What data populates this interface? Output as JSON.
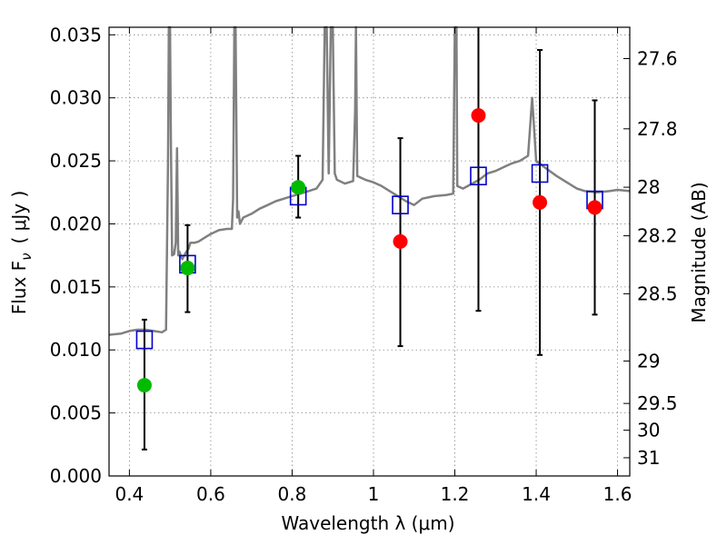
{
  "chart_data": {
    "type": "scatter",
    "title": "",
    "xlabel": "Wavelength  λ (μm)",
    "ylabel": "Flux  F",
    "ylabel_sub": "ν",
    "ylabel_unit": "( μJy )",
    "y2label": "Magnitude (AB)",
    "xlim": [
      0.35,
      1.63
    ],
    "ylim": [
      0.0,
      0.0356
    ],
    "grid": true,
    "x_ticks": [
      {
        "value": 0.4,
        "label": "0.4"
      },
      {
        "value": 0.6,
        "label": "0.6"
      },
      {
        "value": 0.8,
        "label": "0.8"
      },
      {
        "value": 1.0,
        "label": "1"
      },
      {
        "value": 1.2,
        "label": "1.2"
      },
      {
        "value": 1.4,
        "label": "1.4"
      },
      {
        "value": 1.6,
        "label": "1.6"
      }
    ],
    "y_ticks": [
      {
        "value": 0.0,
        "label": "0.000"
      },
      {
        "value": 0.005,
        "label": "0.005"
      },
      {
        "value": 0.01,
        "label": "0.010"
      },
      {
        "value": 0.015,
        "label": "0.015"
      },
      {
        "value": 0.02,
        "label": "0.020"
      },
      {
        "value": 0.025,
        "label": "0.025"
      },
      {
        "value": 0.03,
        "label": "0.030"
      },
      {
        "value": 0.035,
        "label": "0.035"
      }
    ],
    "y2_ticks": [
      {
        "mag": 27.6,
        "label": "27.6"
      },
      {
        "mag": 27.8,
        "label": "27.8"
      },
      {
        "mag": 28.0,
        "label": "28"
      },
      {
        "mag": 28.2,
        "label": "28.2"
      },
      {
        "mag": 28.5,
        "label": "28.5"
      },
      {
        "mag": 29.0,
        "label": "29"
      },
      {
        "mag": 29.5,
        "label": "29.5"
      },
      {
        "mag": 30.0,
        "label": "30"
      },
      {
        "mag": 31.0,
        "label": "31"
      }
    ],
    "colors": {
      "model": "#808080",
      "model_points": "#0000cc",
      "observed_optical": "#00bb00",
      "observed_nir": "#ff0000",
      "errorbar": "#000000",
      "grid": "#888888"
    },
    "model_spectrum": {
      "x": [
        0.35,
        0.38,
        0.4,
        0.42,
        0.44,
        0.46,
        0.48,
        0.49,
        0.495,
        0.497,
        0.5,
        0.502,
        0.505,
        0.51,
        0.514,
        0.517,
        0.52,
        0.523,
        0.526,
        0.53,
        0.535,
        0.54,
        0.545,
        0.55,
        0.56,
        0.57,
        0.58,
        0.59,
        0.6,
        0.62,
        0.64,
        0.652,
        0.655,
        0.658,
        0.661,
        0.665,
        0.668,
        0.672,
        0.675,
        0.68,
        0.7,
        0.72,
        0.74,
        0.76,
        0.78,
        0.8,
        0.82,
        0.84,
        0.86,
        0.875,
        0.88,
        0.885,
        0.89,
        0.895,
        0.9,
        0.905,
        0.91,
        0.93,
        0.95,
        0.955,
        0.957,
        0.96,
        0.98,
        1.0,
        1.02,
        1.04,
        1.06,
        1.08,
        1.1,
        1.12,
        1.15,
        1.18,
        1.196,
        1.2,
        1.204,
        1.206,
        1.22,
        1.26,
        1.28,
        1.3,
        1.32,
        1.34,
        1.36,
        1.38,
        1.39,
        1.4,
        1.42,
        1.45,
        1.48,
        1.5,
        1.52,
        1.55,
        1.58,
        1.6,
        1.63
      ],
      "y": [
        0.0112,
        0.0113,
        0.0115,
        0.0116,
        0.0116,
        0.0115,
        0.0114,
        0.0116,
        0.025,
        0.0356,
        0.0356,
        0.027,
        0.0175,
        0.0176,
        0.0185,
        0.026,
        0.0175,
        0.0178,
        0.0175,
        0.0172,
        0.0175,
        0.0178,
        0.018,
        0.0185,
        0.0185,
        0.0186,
        0.0188,
        0.019,
        0.0192,
        0.0195,
        0.0196,
        0.0196,
        0.022,
        0.0356,
        0.0356,
        0.0205,
        0.021,
        0.02,
        0.0202,
        0.0205,
        0.0208,
        0.0212,
        0.0215,
        0.0218,
        0.022,
        0.0222,
        0.0224,
        0.0226,
        0.0228,
        0.0235,
        0.0356,
        0.0356,
        0.024,
        0.0356,
        0.0356,
        0.024,
        0.0235,
        0.0232,
        0.0234,
        0.029,
        0.0356,
        0.0238,
        0.0235,
        0.0233,
        0.023,
        0.0226,
        0.0222,
        0.0218,
        0.0215,
        0.022,
        0.0222,
        0.0223,
        0.0224,
        0.0356,
        0.0356,
        0.023,
        0.0228,
        0.0235,
        0.024,
        0.0242,
        0.0245,
        0.0248,
        0.025,
        0.0254,
        0.03,
        0.025,
        0.0245,
        0.0238,
        0.0232,
        0.0228,
        0.0226,
        0.0225,
        0.0226,
        0.0227,
        0.0226
      ]
    },
    "model_points": {
      "x": [
        0.437,
        0.543,
        0.815,
        1.066,
        1.258,
        1.409,
        1.544
      ],
      "y": [
        0.0108,
        0.0168,
        0.0222,
        0.0215,
        0.0238,
        0.024,
        0.0219
      ]
    },
    "observed": [
      {
        "x": 0.437,
        "y": 0.0072,
        "err_low": 0.0021,
        "err_high": 0.0124,
        "band": "optical"
      },
      {
        "x": 0.543,
        "y": 0.0165,
        "err_low": 0.013,
        "err_high": 0.0199,
        "band": "optical"
      },
      {
        "x": 0.815,
        "y": 0.0229,
        "err_low": 0.0205,
        "err_high": 0.0254,
        "band": "optical"
      },
      {
        "x": 1.066,
        "y": 0.0186,
        "err_low": 0.0103,
        "err_high": 0.0268,
        "band": "nir"
      },
      {
        "x": 1.258,
        "y": 0.0286,
        "err_low": 0.0131,
        "err_high": 0.0356,
        "band": "nir"
      },
      {
        "x": 1.409,
        "y": 0.0217,
        "err_low": 0.0096,
        "err_high": 0.0338,
        "band": "nir"
      },
      {
        "x": 1.544,
        "y": 0.0213,
        "err_low": 0.0128,
        "err_high": 0.0298,
        "band": "nir"
      }
    ]
  }
}
